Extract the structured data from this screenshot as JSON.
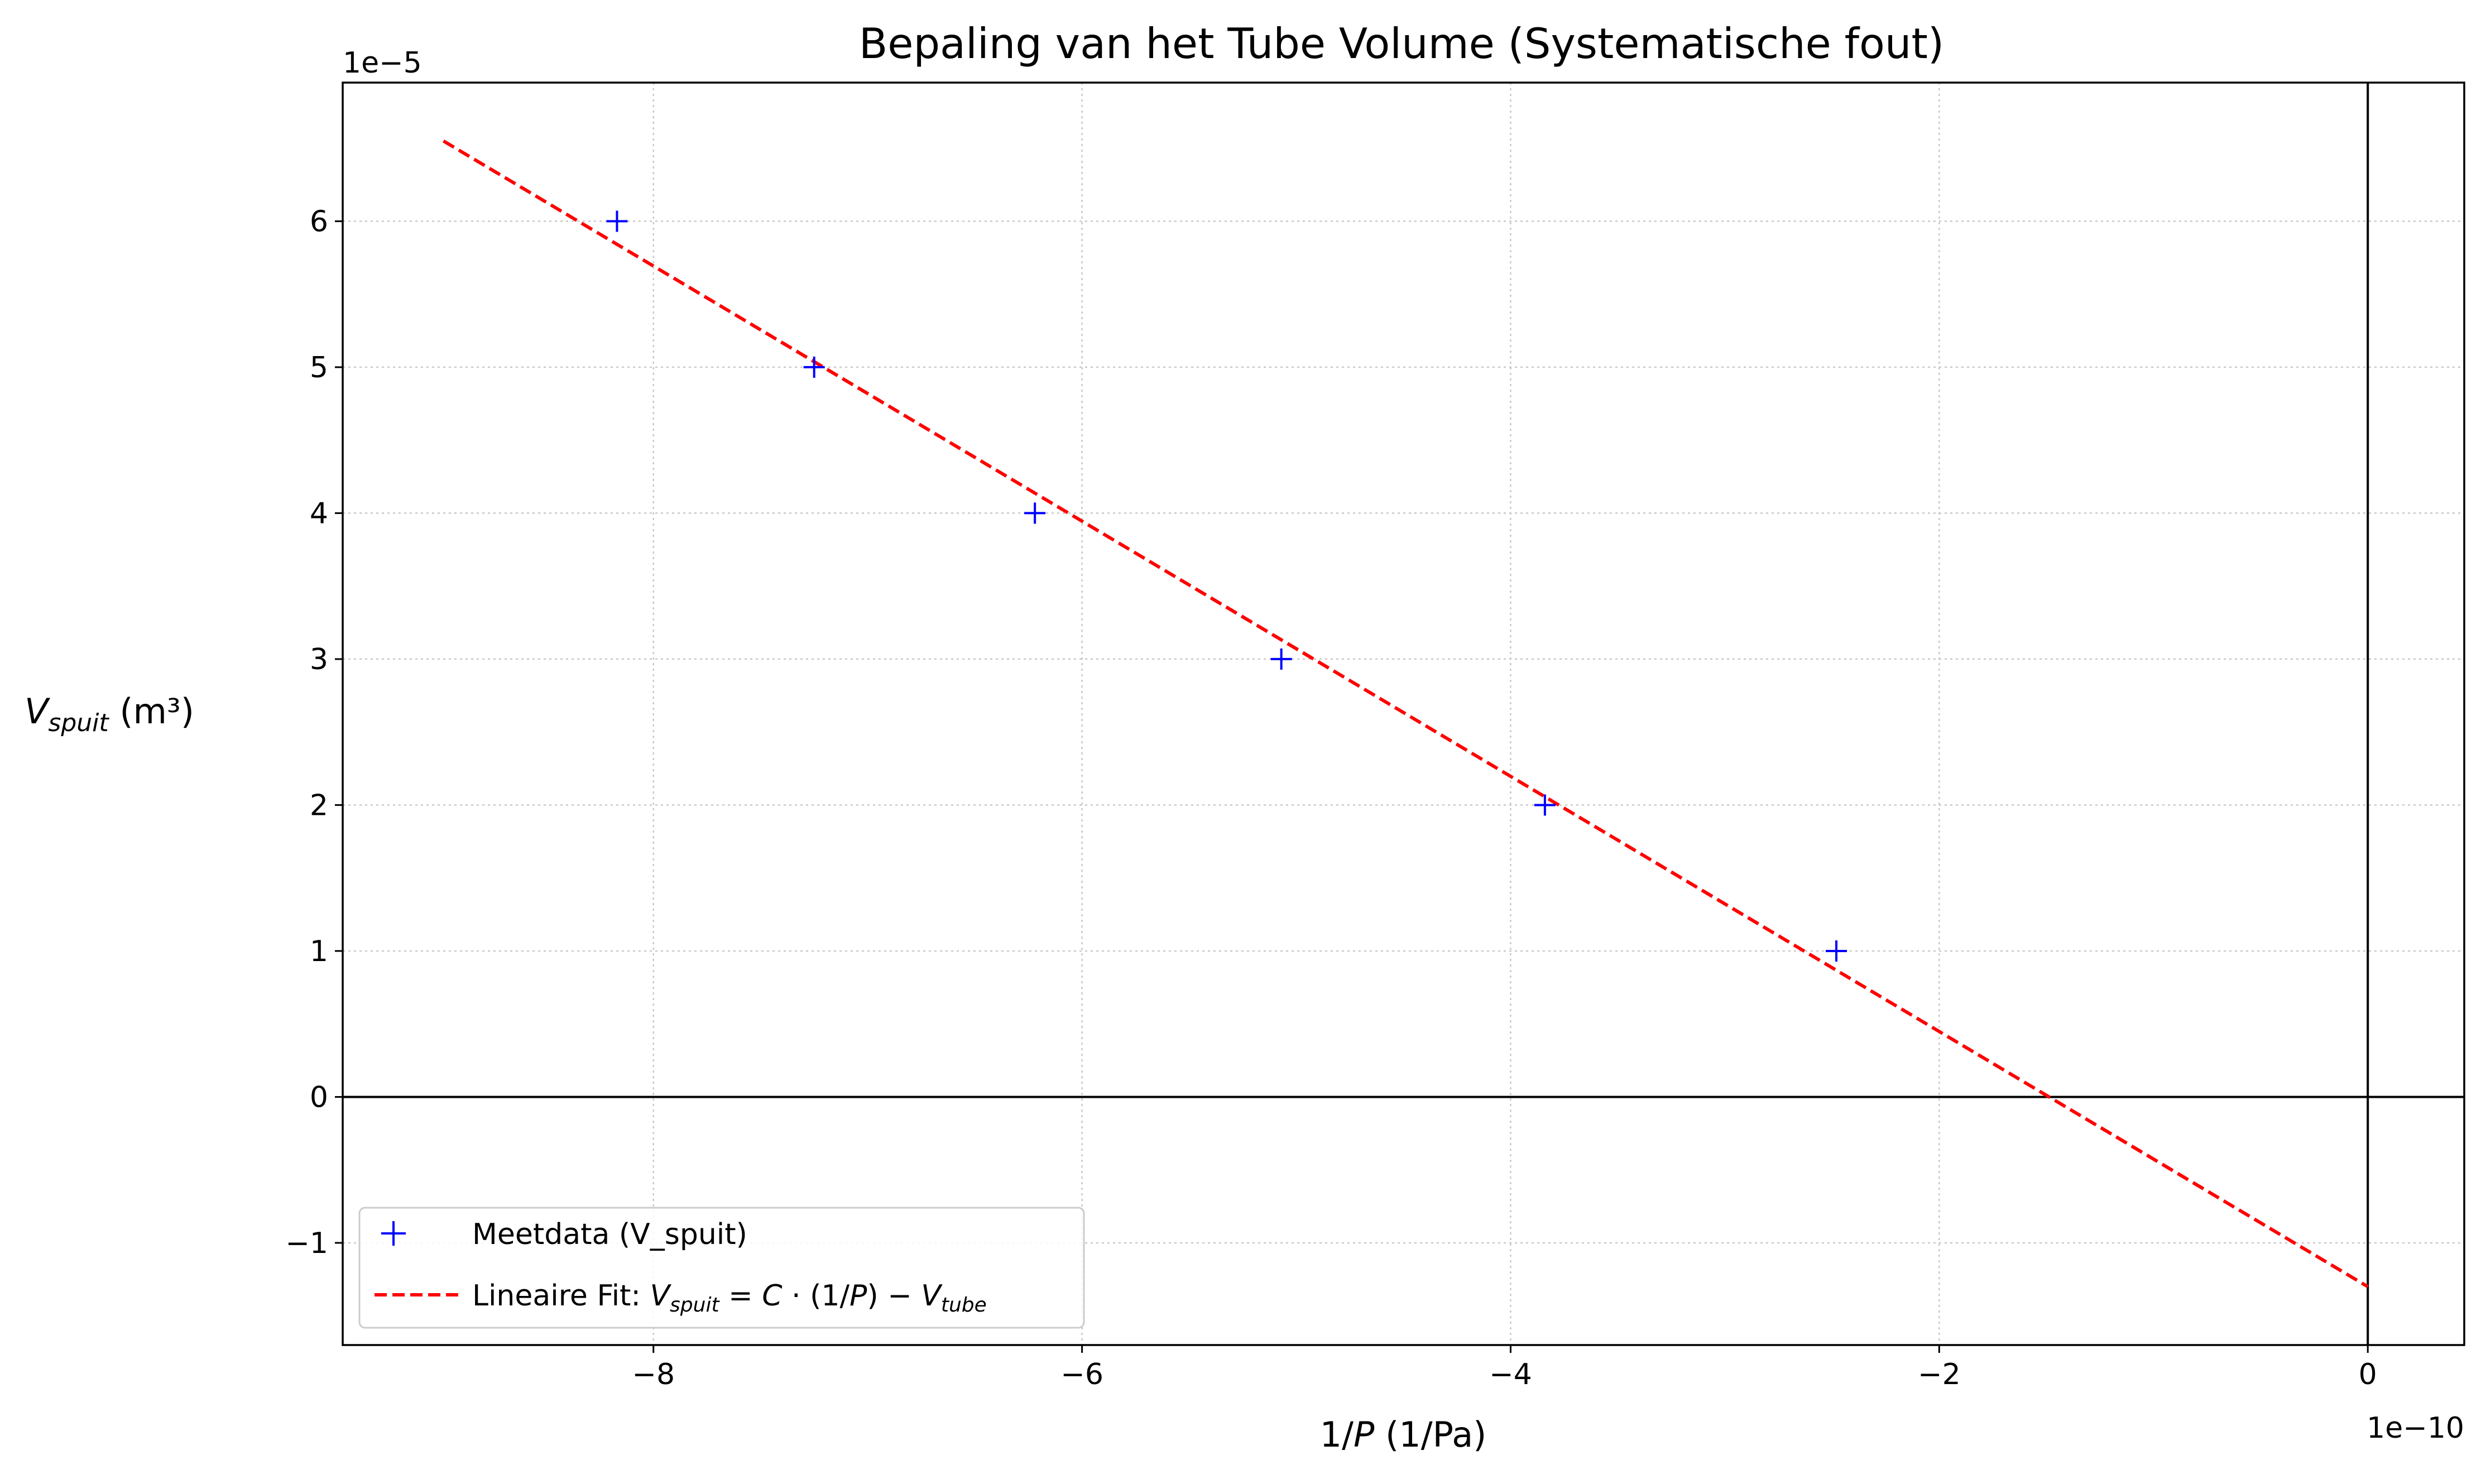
{
  "chart_data": {
    "type": "scatter",
    "title": "Bepaling van het Tube Volume (Systematische fout)",
    "xlabel": "1/P (1/Pa)",
    "ylabel": "V_spuit (m³)",
    "xlabel_parts": {
      "pre": "1/",
      "var": "P",
      "post": " (1/Pa)"
    },
    "ylabel_parts": {
      "var": "V",
      "sub": "spuit",
      "post": " (m³)"
    },
    "x_offset_label": "1e−10",
    "y_offset_label": "1e−5",
    "xlim": [
      -9.45,
      0.45
    ],
    "ylim": [
      -1.7,
      6.95
    ],
    "x_scale": 1e-10,
    "y_scale": 1e-05,
    "x_ticks": [
      -8,
      -6,
      -4,
      -2,
      0
    ],
    "y_ticks": [
      -1,
      0,
      1,
      2,
      3,
      4,
      5,
      6
    ],
    "x_tick_labels": [
      "−8",
      "−6",
      "−4",
      "−2",
      "0"
    ],
    "y_tick_labels": [
      "−1",
      "0",
      "1",
      "2",
      "3",
      "4",
      "5",
      "6"
    ],
    "grid": true,
    "legend_position": "lower-left",
    "zero_lines": {
      "x": 0,
      "y": 0,
      "color": "#000000"
    },
    "series": [
      {
        "name": "Meetdata (V_spuit)",
        "kind": "markers",
        "marker": "+",
        "color": "#0000ff",
        "x": [
          -8.17,
          -7.25,
          -6.22,
          -5.07,
          -3.84,
          -2.48
        ],
        "y": [
          6,
          5,
          4,
          3,
          2,
          1
        ]
      },
      {
        "name": "Lineaire Fit: V_spuit = C · (1/P) − V_tube",
        "kind": "line",
        "linestyle": "dashed",
        "color": "#ff0000",
        "x": [
          -8.98,
          0
        ],
        "y": [
          6.55,
          -1.3
        ]
      }
    ],
    "legend": [
      {
        "label": "Meetdata (V_spuit)"
      },
      {
        "label": "Lineaire Fit: V_spuit = C · (1/P) − V_tube"
      }
    ],
    "legend_math": {
      "fit_prefix": "Lineaire Fit: ",
      "v": "V",
      "spuit": "spuit",
      "eq": " = ",
      "c": "C",
      "dot": " · (1/",
      "p": "P",
      "close": ") − ",
      "tube": "tube"
    }
  }
}
